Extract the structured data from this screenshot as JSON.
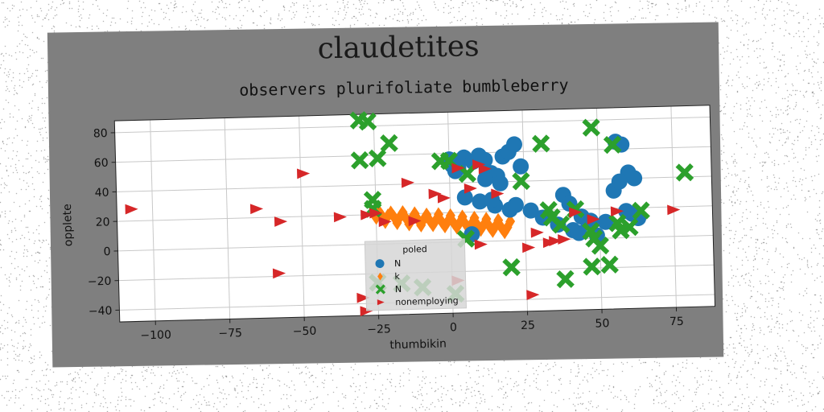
{
  "chart_data": {
    "type": "scatter",
    "title": "claudetites",
    "subtitle": "observers plurifoliate bumbleberry",
    "xlabel": "thumbikin",
    "ylabel": "opplete",
    "xlim": [
      -112,
      88
    ],
    "ylim": [
      -48,
      88
    ],
    "xticks": [
      -100,
      -75,
      -50,
      -25,
      0,
      25,
      50,
      75
    ],
    "xtick_labels": [
      "−100",
      "−75",
      "−50",
      "−25",
      "0",
      "25",
      "50",
      "75"
    ],
    "yticks": [
      -40,
      -20,
      0,
      20,
      40,
      60,
      80
    ],
    "ytick_labels": [
      "−40",
      "−20",
      "0",
      "20",
      "40",
      "60",
      "80"
    ],
    "grid": true,
    "legend": {
      "title": "poled",
      "position": "lower-center"
    },
    "series": [
      {
        "name": "N",
        "marker": "circle",
        "color": "#1f77b4",
        "x": [
          0,
          1,
          2,
          3,
          5,
          8,
          10,
          12,
          14,
          16,
          18,
          20,
          22,
          24,
          5,
          10,
          15,
          20,
          12,
          17,
          22,
          27,
          31,
          36,
          41,
          43,
          46,
          49,
          56,
          58,
          60,
          62,
          38,
          40,
          44,
          47,
          52,
          55,
          57,
          59,
          61,
          63,
          10,
          14,
          7
        ],
        "y": [
          56,
          52,
          48,
          50,
          57,
          54,
          58,
          55,
          46,
          44,
          57,
          60,
          65,
          50,
          30,
          27,
          24,
          21,
          42,
          39,
          24,
          20,
          15,
          10,
          6,
          4,
          12,
          2,
          65,
          63,
          44,
          40,
          30,
          24,
          15,
          12,
          11,
          32,
          38,
          18,
          16,
          13,
          58,
          28,
          5
        ]
      },
      {
        "name": "k",
        "marker": "diamond",
        "color": "#ff7f0e",
        "x": [
          -25,
          -23,
          -21,
          -19,
          -17,
          -15,
          -13,
          -11,
          -9,
          -7,
          -5,
          -3,
          -1,
          1,
          3,
          5,
          7,
          9,
          11,
          13,
          15,
          17,
          19,
          -24,
          -20,
          -16,
          -12,
          -8,
          -4,
          0,
          4,
          8,
          12,
          16,
          20,
          -22,
          -18,
          -14,
          -10,
          -6,
          -2,
          2,
          6,
          10,
          14,
          18
        ],
        "y": [
          18,
          19,
          19,
          18,
          18,
          17,
          17,
          16,
          16,
          15,
          15,
          14,
          14,
          13,
          13,
          12,
          12,
          11,
          11,
          10,
          10,
          9,
          9,
          22,
          21,
          21,
          20,
          19,
          19,
          18,
          17,
          16,
          15,
          14,
          13,
          15,
          14,
          13,
          12,
          12,
          11,
          10,
          9,
          8,
          7,
          6
        ]
      },
      {
        "name": "N",
        "marker": "x",
        "color": "#2ca02c",
        "x": [
          -30,
          -27,
          -30,
          -24,
          -20,
          -26,
          -3,
          31,
          48,
          55,
          79,
          -26,
          0,
          6,
          24,
          33,
          34,
          37,
          42,
          47,
          48,
          50,
          53,
          56,
          57,
          60,
          64,
          20,
          38,
          47,
          -25,
          -10,
          -17,
          1,
          5
        ],
        "y": [
          84,
          83,
          57,
          58,
          68,
          30,
          55,
          65,
          75,
          63,
          43,
          24,
          55,
          46,
          40,
          20,
          15,
          10,
          20,
          5,
          0,
          -5,
          -18,
          10,
          5,
          7,
          18,
          -18,
          -27,
          -19,
          -26,
          -30,
          -27,
          -35,
          2
        ]
      },
      {
        "name": "nonemploying",
        "marker": "triangle-right",
        "color": "#d62728",
        "x": [
          -107,
          -65,
          -57,
          -49,
          -37,
          -28,
          -25,
          -22,
          -14,
          -12,
          -5,
          -2,
          3,
          7,
          10,
          12,
          16,
          26,
          29,
          33,
          35,
          38,
          42,
          48,
          56,
          75,
          -58,
          27,
          2,
          10,
          -29,
          -30
        ],
        "y": [
          28,
          26,
          17,
          49,
          19,
          20,
          21,
          15,
          41,
          15,
          33,
          30,
          50,
          36,
          52,
          49,
          32,
          -5,
          5,
          -2,
          -1,
          0,
          18,
          13,
          18,
          18,
          -18,
          -37,
          -26,
          -2,
          -45,
          -36
        ]
      }
    ]
  }
}
